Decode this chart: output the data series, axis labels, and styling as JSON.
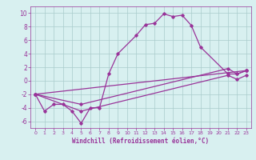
{
  "line1_x": [
    0,
    1,
    2,
    3,
    4,
    5,
    6,
    7,
    8,
    9,
    11,
    12,
    13,
    14,
    15,
    16,
    17,
    18,
    21,
    22,
    23
  ],
  "line1_y": [
    -2,
    -4.5,
    -3.5,
    -3.5,
    -4.5,
    -6.3,
    -4,
    -4,
    1,
    4,
    6.7,
    8.3,
    8.5,
    9.9,
    9.5,
    9.7,
    8.2,
    5,
    1,
    1,
    1.5
  ],
  "line2_x": [
    0,
    23
  ],
  "line2_y": [
    -2,
    1.5
  ],
  "line3_x": [
    0,
    5,
    21,
    22,
    23
  ],
  "line3_y": [
    -2,
    -3.5,
    1.8,
    1.0,
    1.5
  ],
  "line4_x": [
    0,
    5,
    21,
    22,
    23
  ],
  "line4_y": [
    -2,
    -4.5,
    0.8,
    0.2,
    0.8
  ],
  "line_color": "#993399",
  "marker": "D",
  "markersize": 1.8,
  "linewidth": 0.9,
  "bg_color": "#d8f0f0",
  "grid_color": "#aacccc",
  "xlabel": "Windchill (Refroidissement éolien,°C)",
  "xlim": [
    -0.5,
    23.5
  ],
  "ylim": [
    -7,
    11
  ],
  "xticks": [
    0,
    1,
    2,
    3,
    4,
    5,
    6,
    7,
    8,
    9,
    10,
    11,
    12,
    13,
    14,
    15,
    16,
    17,
    18,
    19,
    20,
    21,
    22,
    23
  ],
  "yticks": [
    -6,
    -4,
    -2,
    0,
    2,
    4,
    6,
    8,
    10
  ]
}
